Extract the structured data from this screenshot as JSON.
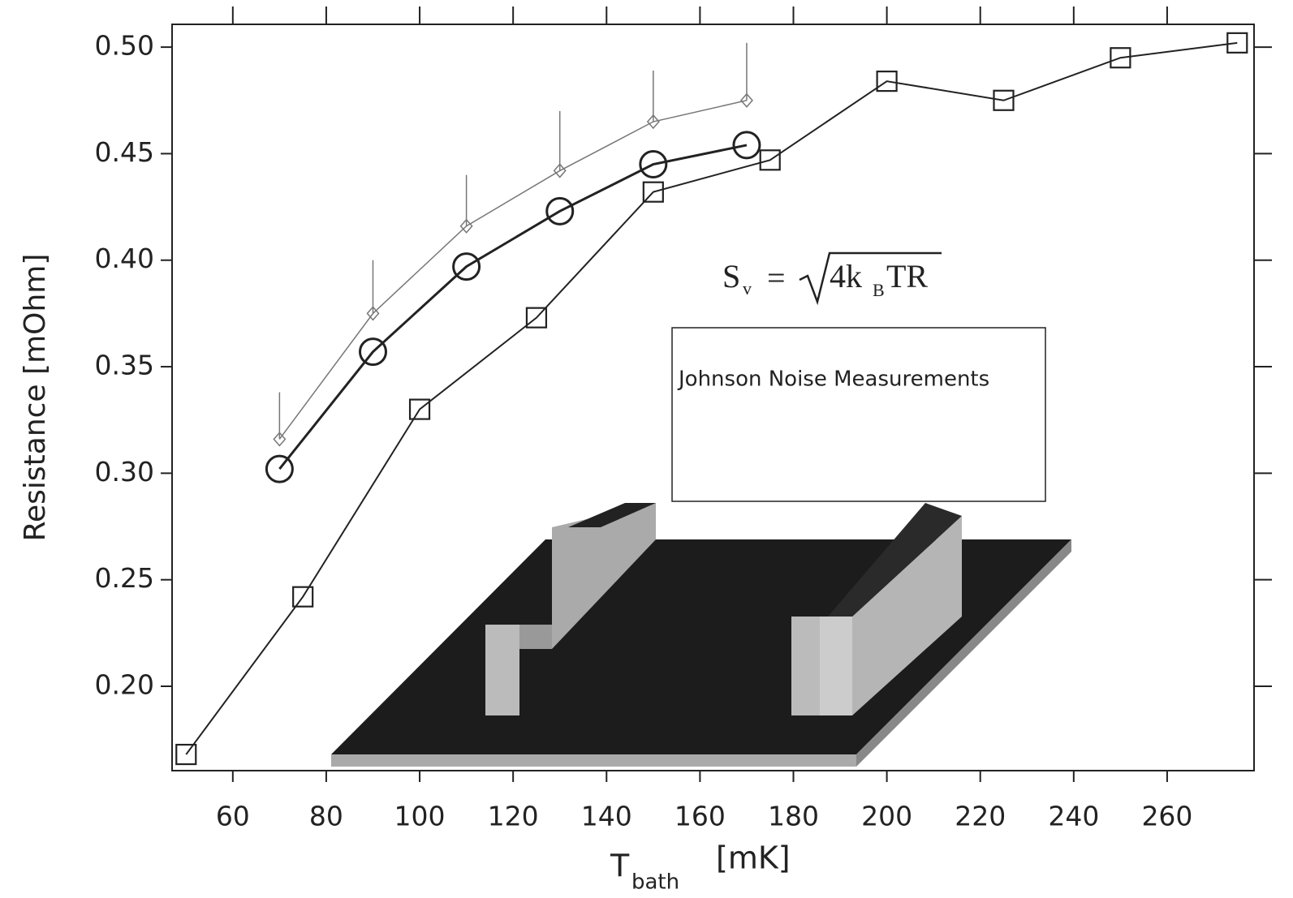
{
  "chart_data": {
    "type": "line",
    "x_label": {
      "main": "T",
      "sub": "bath",
      "unit": "[mK]"
    },
    "y_label": "Resistance [mOhm]",
    "formula": {
      "lhs": "S",
      "lhs_sub": "v",
      "eq": "=",
      "rad_a": "4k",
      "rad_sub": "B",
      "rad_b": "TR"
    },
    "legend_title": "Johnson Noise Measurements",
    "xlim": [
      47,
      278.6
    ],
    "ylim": [
      0.1604,
      0.5107
    ],
    "xticks": [
      60,
      80,
      100,
      120,
      140,
      160,
      180,
      200,
      220,
      240,
      260
    ],
    "yticks": [
      {
        "value": 0.2,
        "label": "0.20"
      },
      0.25,
      {
        "value": 0.3,
        "label": "0.30"
      },
      0.35,
      {
        "value": 0.4,
        "label": "0.40"
      },
      0.45,
      {
        "value": 0.5,
        "label": "0.50"
      }
    ],
    "series": [
      {
        "marker": "circle",
        "color": "#222",
        "x": [
          70,
          90,
          110,
          130,
          150,
          170
        ],
        "values": [
          0.302,
          0.357,
          0.397,
          0.423,
          0.445,
          0.454
        ]
      },
      {
        "marker": "square",
        "color": "#222",
        "x": [
          50,
          75,
          100,
          125,
          150,
          175,
          200,
          225,
          250,
          275
        ],
        "values": [
          0.168,
          0.242,
          0.33,
          0.373,
          0.432,
          0.447,
          0.484,
          0.475,
          0.495,
          0.502
        ]
      },
      {
        "marker": "diamond",
        "color": "#777",
        "x": [
          70,
          90,
          110,
          130,
          150,
          170
        ],
        "values": [
          0.316,
          0.375,
          0.416,
          0.442,
          0.465,
          0.475
        ],
        "errors": [
          0.022,
          0.025,
          0.024,
          0.028,
          0.024,
          0.027
        ]
      }
    ]
  }
}
